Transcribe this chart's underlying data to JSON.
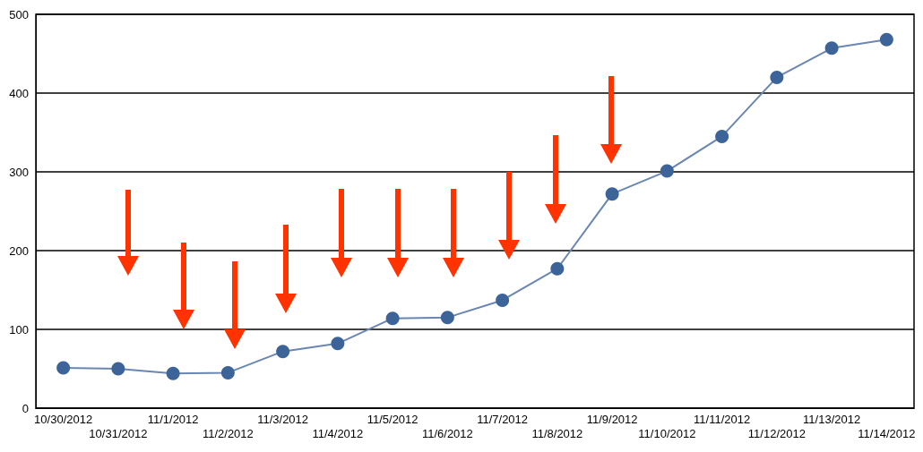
{
  "chart_data": {
    "type": "line",
    "categories": [
      "10/30/2012",
      "10/31/2012",
      "11/1/2012",
      "11/2/2012",
      "11/3/2012",
      "11/4/2012",
      "11/5/2012",
      "11/6/2012",
      "11/7/2012",
      "11/8/2012",
      "11/9/2012",
      "11/10/2012",
      "11/11/2012",
      "11/12/2012",
      "11/13/2012",
      "11/14/2012"
    ],
    "series": [
      {
        "color": "#3c6499",
        "values": [
          51,
          50,
          44,
          45,
          72,
          82,
          114,
          115,
          137,
          177,
          272,
          301,
          345,
          420,
          457,
          468
        ]
      }
    ],
    "ylim": [
      0,
      500
    ],
    "yticks": [
      0,
      100,
      200,
      300,
      400,
      500
    ],
    "grid": "y",
    "marker": "circle",
    "line_style": "solid"
  }
}
